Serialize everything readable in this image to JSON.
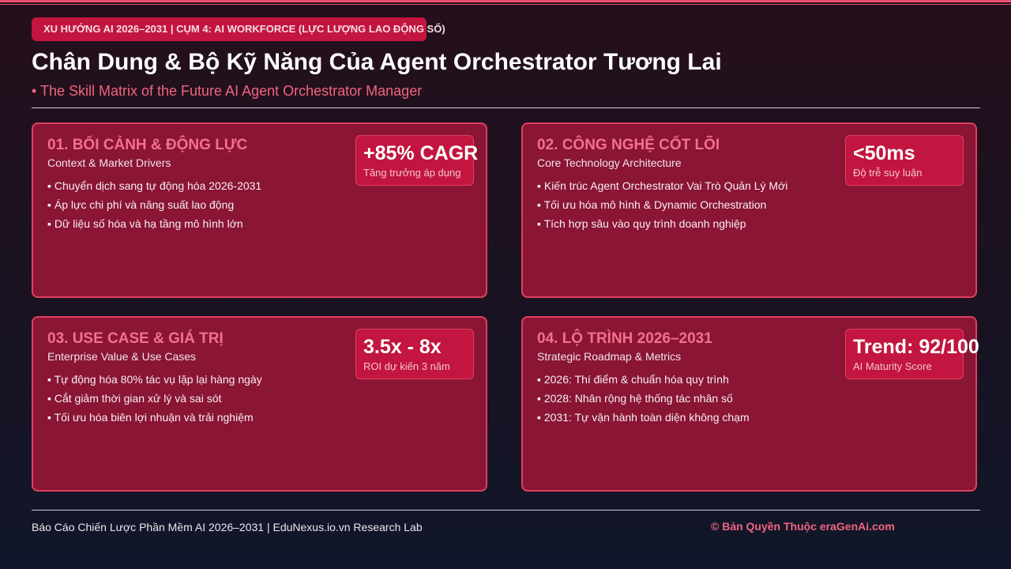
{
  "header": {
    "tag": "XU HƯỚNG AI 2026–2031 | CỤM 4: AI WORKFORCE (LỰC LƯỢNG LAO ĐỘNG SỐ)",
    "title": "Chân Dung & Bộ Kỹ Năng Của Agent Orchestrator Tương Lai",
    "subtitle": "The Skill Matrix of the Future AI Agent Orchestrator Manager"
  },
  "cards": [
    {
      "title": "01. BỐI CẢNH & ĐỘNG LỰC",
      "subtitle": "Context & Market Drivers",
      "stat": "+85% CAGR",
      "stat_label": "Tăng trưởng áp dụng",
      "bullets": [
        "Chuyển dịch sang tự động hóa 2026-2031",
        "Áp lực chi phí và năng suất lao động",
        "Dữ liệu số hóa và hạ tầng mô hình lớn"
      ]
    },
    {
      "title": "02. CÔNG NGHỆ CỐT LÕI",
      "subtitle": "Core Technology Architecture",
      "stat": "<50ms",
      "stat_label": "Độ trễ suy luận",
      "bullets": [
        "Kiến trúc Agent Orchestrator Vai Trò Quản Lý Mới",
        "Tối ưu hóa mô hình & Dynamic Orchestration",
        "Tích hợp sâu vào quy trình doanh nghiệp"
      ]
    },
    {
      "title": "03. USE CASE & GIÁ TRỊ",
      "subtitle": "Enterprise Value & Use Cases",
      "stat": "3.5x - 8x",
      "stat_label": "ROI dự kiến 3 năm",
      "bullets": [
        "Tự động hóa 80% tác vụ lặp lại hàng ngày",
        "Cắt giảm thời gian xử lý và sai sót",
        "Tối ưu hóa biên lợi nhuận và trải nghiệm"
      ]
    },
    {
      "title": "04. LỘ TRÌNH 2026–2031",
      "subtitle": "Strategic Roadmap & Metrics",
      "stat": "Trend: 92/100",
      "stat_label": "AI Maturity Score",
      "bullets": [
        "2026: Thí điểm & chuẩn hóa quy trình",
        "2028: Nhân rộng hệ thống tác nhân số",
        "2031: Tự vận hành toàn diện không chạm"
      ]
    }
  ],
  "footer": {
    "left": "Báo Cáo Chiến Lược Phần Mềm AI 2026–2031 | EduNexus.io.vn Research Lab",
    "right": "© Bản Quyền Thuộc eraGenAi.com"
  }
}
